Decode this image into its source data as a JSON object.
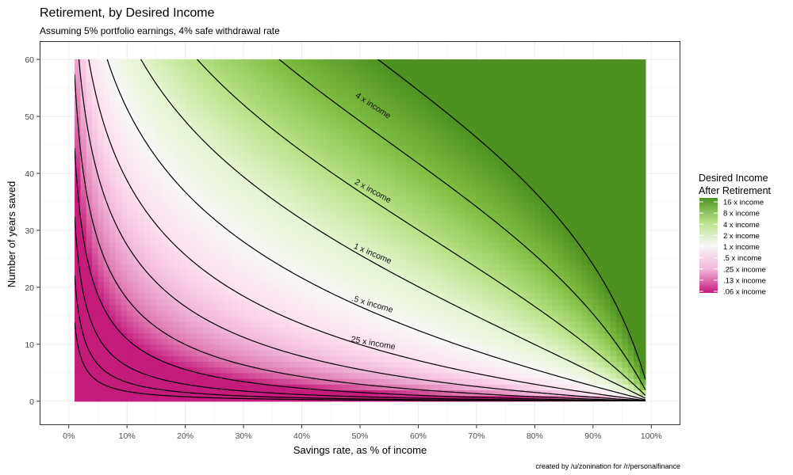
{
  "chart_data": {
    "type": "heatmap",
    "title": "Retirement, by Desired Income",
    "subtitle": "Assuming 5% portfolio earnings, 4% safe withdrawal rate",
    "xlabel": "Savings rate, as % of income",
    "ylabel": "Number of years saved",
    "xlim": [
      0.01,
      0.99
    ],
    "ylim": [
      0,
      60
    ],
    "x_ticks": [
      "0%",
      "10%",
      "20%",
      "30%",
      "40%",
      "50%",
      "60%",
      "70%",
      "80%",
      "90%",
      "100%"
    ],
    "x_tick_values": [
      0,
      0.1,
      0.2,
      0.3,
      0.4,
      0.5,
      0.6,
      0.7,
      0.8,
      0.9,
      1.0
    ],
    "y_ticks": [
      "0",
      "10",
      "20",
      "30",
      "40",
      "50",
      "60"
    ],
    "y_tick_values": [
      0,
      10,
      20,
      30,
      40,
      50,
      60
    ],
    "grid": true,
    "colors": {
      "low": "#c51b7d",
      "mid": "#f7f7f7",
      "high": "#4d9221"
    },
    "contour_levels": [
      0.0078125,
      0.015625,
      0.03125,
      0.0625,
      0.125,
      0.25,
      0.5,
      1,
      2,
      4,
      8,
      16
    ],
    "contour_labels": [
      {
        "level": 4,
        "text": "4 x income",
        "x": 0.52,
        "y": 51.5
      },
      {
        "level": 2,
        "text": "2 x income",
        "x": 0.52,
        "y": 36.5
      },
      {
        "level": 1,
        "text": "1 x income",
        "x": 0.52,
        "y": 25.5
      },
      {
        "level": 0.5,
        "text": ".5 x income",
        "x": 0.52,
        "y": 16.6
      },
      {
        "level": 0.25,
        "text": ".25 x income",
        "x": 0.52,
        "y": 9.8
      }
    ],
    "legend": {
      "title_line1": "Desired Income",
      "title_line2": "After Retirement",
      "placement": "right",
      "entries": [
        {
          "label": "16 x income",
          "value": 16
        },
        {
          "label": "8 x income",
          "value": 8
        },
        {
          "label": "4 x income",
          "value": 4
        },
        {
          "label": "2 x income",
          "value": 2
        },
        {
          "label": "1 x income",
          "value": 1
        },
        {
          "label": ".5 x income",
          "value": 0.5
        },
        {
          "label": ".25 x income",
          "value": 0.25
        },
        {
          "label": ".13 x income",
          "value": 0.13
        },
        {
          "label": ".06 x income",
          "value": 0.06
        }
      ]
    },
    "caption": "created by /u/zonination for /r/personalfinance"
  }
}
